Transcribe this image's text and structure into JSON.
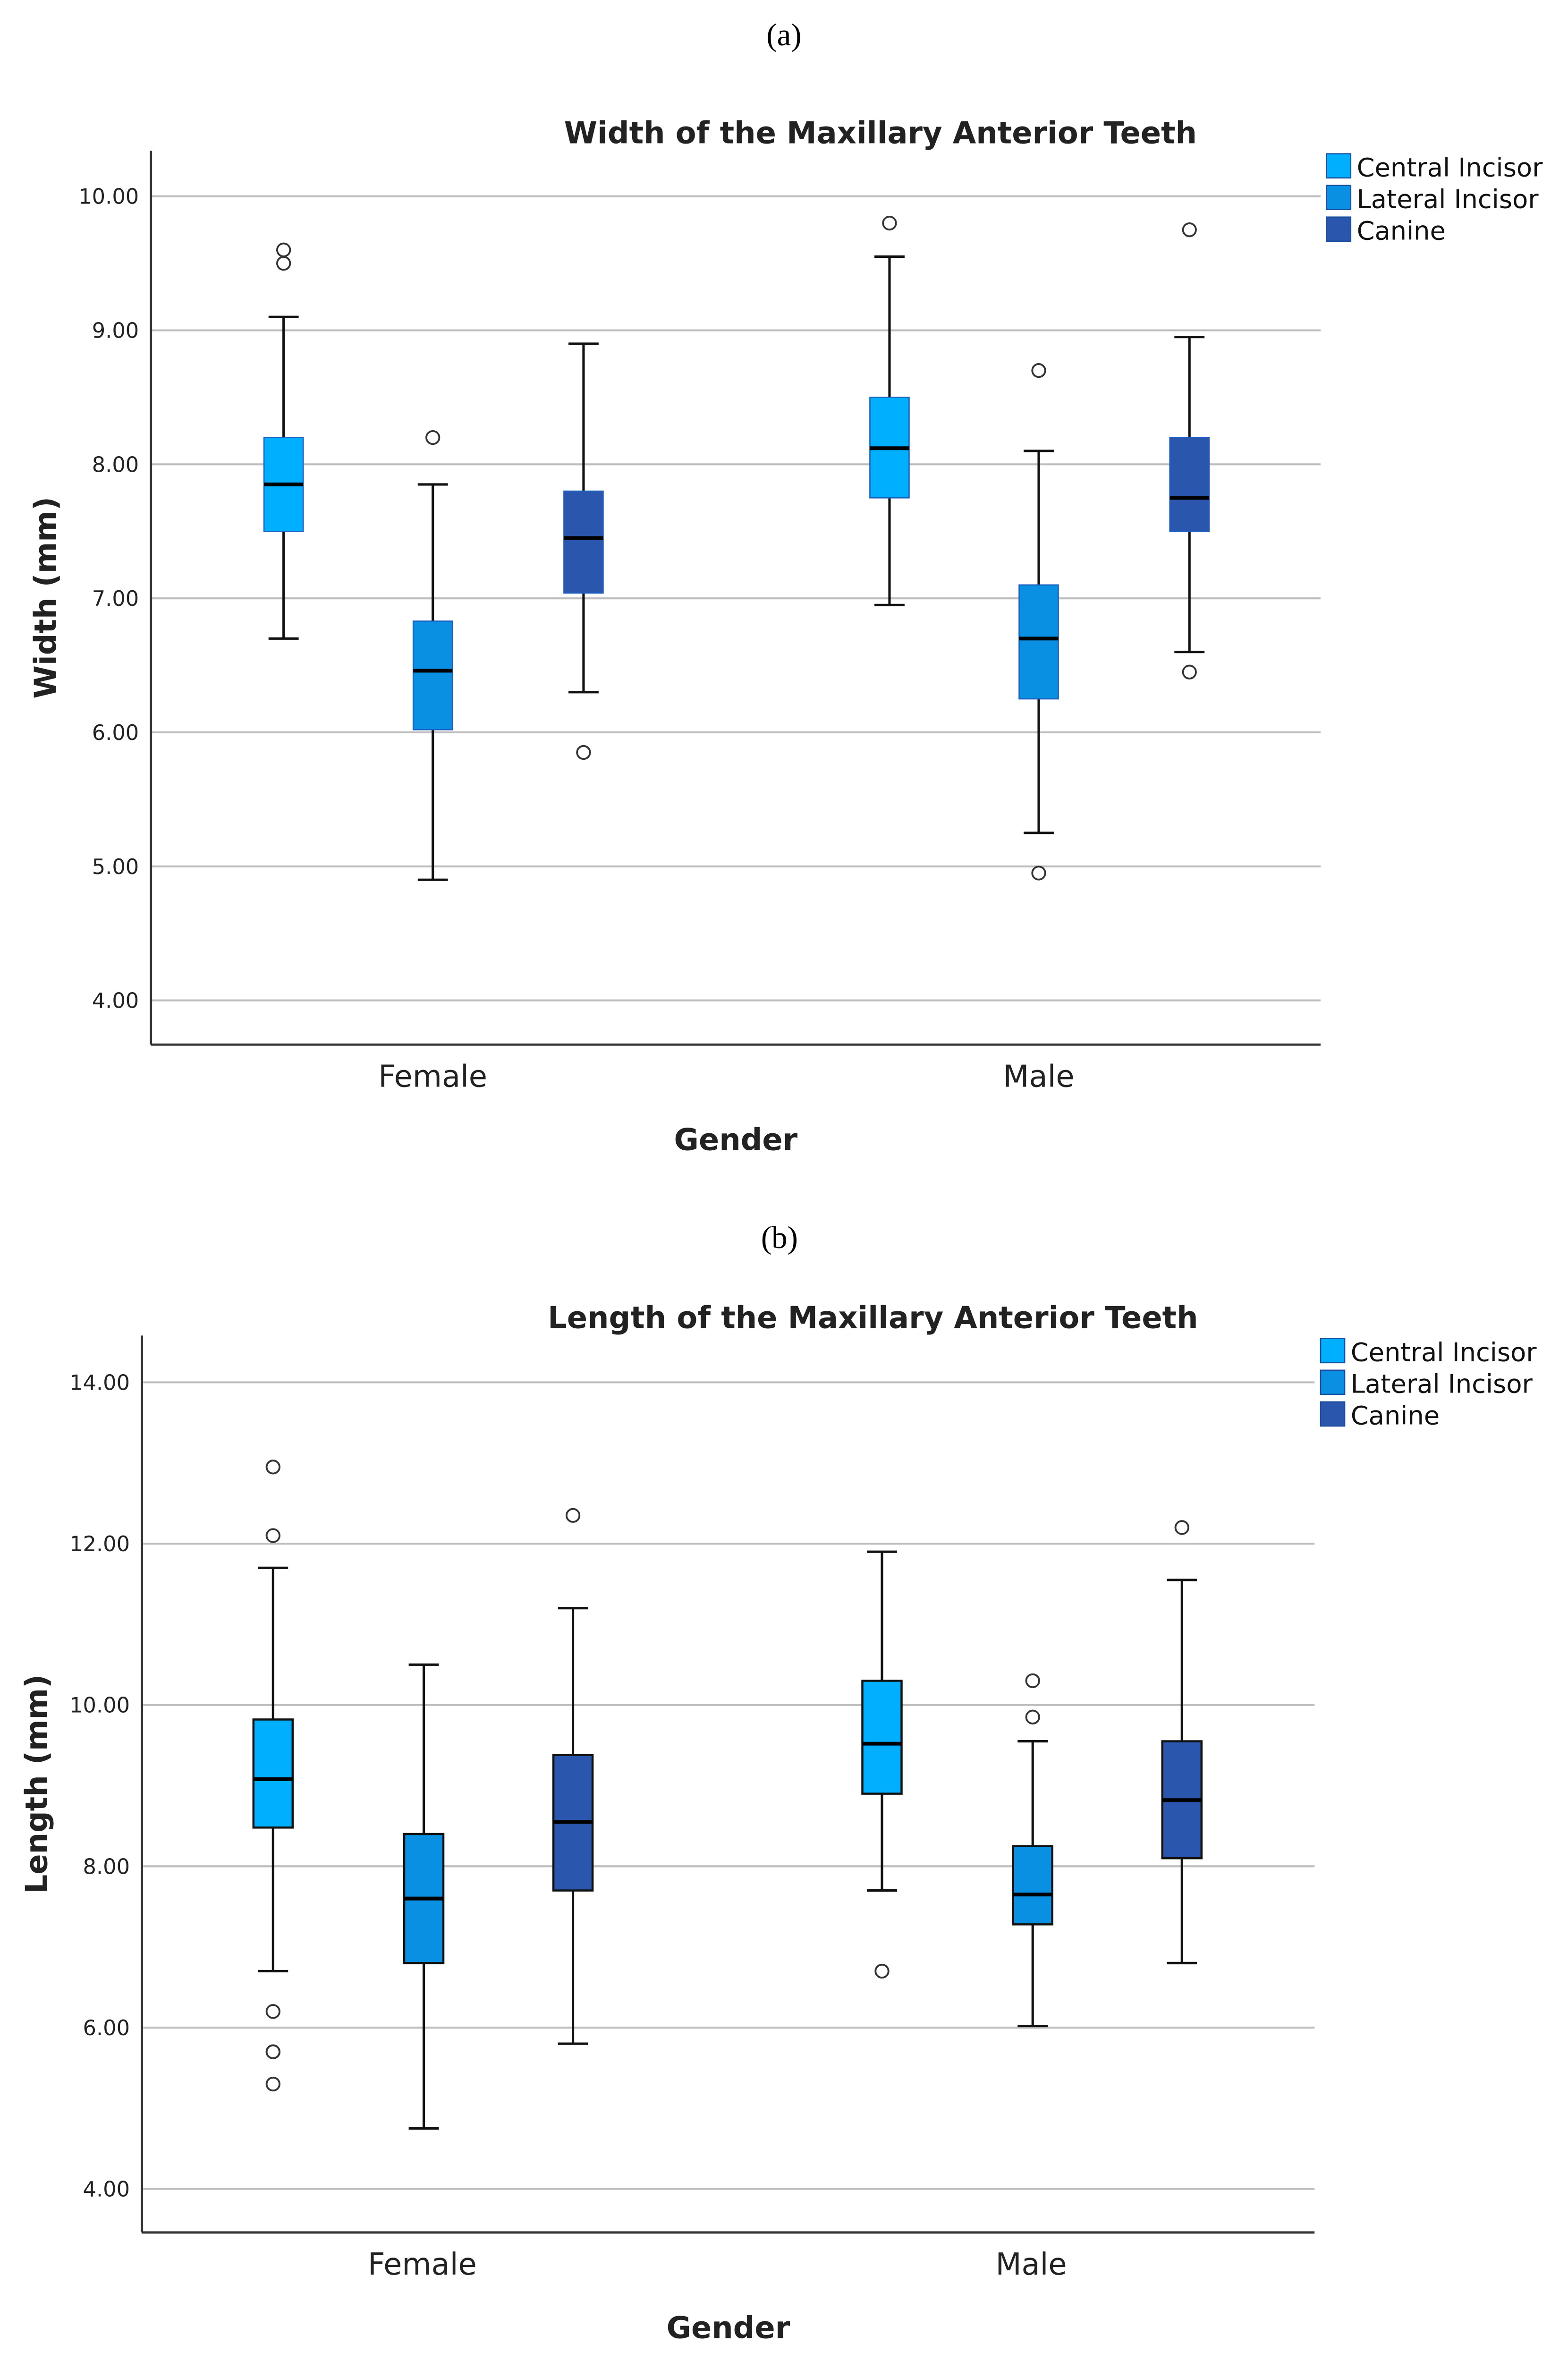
{
  "panel_labels": [
    "(a)",
    "(b)"
  ],
  "colors": {
    "Central Incisor": "#00b0ff",
    "Lateral Incisor": "#0a90e2",
    "Canine": "#2a56ad"
  },
  "chart_data": [
    {
      "type": "box",
      "title": "Width of the Maxillary Anterior Teeth",
      "xlabel": "Gender",
      "ylabel": "Width (mm)",
      "ylim": [
        3.67,
        10.34
      ],
      "yticks": [
        "4.00",
        "5.00",
        "6.00",
        "7.00",
        "8.00",
        "9.00",
        "10.00"
      ],
      "grid": true,
      "legend_position": "top-right",
      "categories": [
        "Female",
        "Male"
      ],
      "series": [
        {
          "name": "Central Incisor",
          "boxes": [
            {
              "min": 6.7,
              "q1": 7.5,
              "median": 7.85,
              "q3": 8.2,
              "max": 9.1,
              "outliers": [
                9.5,
                9.6
              ]
            },
            {
              "min": 6.95,
              "q1": 7.75,
              "median": 8.12,
              "q3": 8.5,
              "max": 9.55,
              "outliers": [
                9.8
              ]
            }
          ]
        },
        {
          "name": "Lateral Incisor",
          "boxes": [
            {
              "min": 4.9,
              "q1": 6.02,
              "median": 6.46,
              "q3": 6.83,
              "max": 7.85,
              "outliers": [
                8.2
              ]
            },
            {
              "min": 5.25,
              "q1": 6.25,
              "median": 6.7,
              "q3": 7.1,
              "max": 8.1,
              "outliers": [
                8.7,
                4.95
              ]
            }
          ]
        },
        {
          "name": "Canine",
          "boxes": [
            {
              "min": 6.3,
              "q1": 7.04,
              "median": 7.45,
              "q3": 7.8,
              "max": 8.9,
              "outliers": [
                5.85
              ]
            },
            {
              "min": 6.6,
              "q1": 7.5,
              "median": 7.75,
              "q3": 8.2,
              "max": 8.95,
              "outliers": [
                9.75,
                6.45
              ]
            }
          ]
        }
      ]
    },
    {
      "type": "box",
      "title": "Length of the Maxillary Anterior Teeth",
      "xlabel": "Gender",
      "ylabel": "Length (mm)",
      "ylim": [
        3.46,
        14.58
      ],
      "yticks": [
        "4.00",
        "6.00",
        "8.00",
        "10.00",
        "12.00",
        "14.00"
      ],
      "grid": true,
      "legend_position": "top-right",
      "categories": [
        "Female",
        "Male"
      ],
      "series": [
        {
          "name": "Central Incisor",
          "boxes": [
            {
              "min": 6.7,
              "q1": 8.48,
              "median": 9.08,
              "q3": 9.82,
              "max": 11.7,
              "outliers": [
                12.95,
                12.1,
                6.2,
                5.7,
                5.7,
                5.3
              ]
            },
            {
              "min": 7.7,
              "q1": 8.9,
              "median": 9.52,
              "q3": 10.3,
              "max": 11.9,
              "outliers": [
                6.7
              ]
            }
          ]
        },
        {
          "name": "Lateral Incisor",
          "boxes": [
            {
              "min": 4.75,
              "q1": 6.8,
              "median": 7.6,
              "q3": 8.4,
              "max": 10.5,
              "outliers": []
            },
            {
              "min": 6.02,
              "q1": 7.28,
              "median": 7.65,
              "q3": 8.25,
              "max": 9.55,
              "outliers": [
                10.3,
                9.85
              ]
            }
          ]
        },
        {
          "name": "Canine",
          "boxes": [
            {
              "min": 5.8,
              "q1": 7.7,
              "median": 8.55,
              "q3": 9.38,
              "max": 11.2,
              "outliers": [
                12.35
              ]
            },
            {
              "min": 6.8,
              "q1": 8.1,
              "median": 8.82,
              "q3": 9.55,
              "max": 11.55,
              "outliers": [
                12.2
              ]
            }
          ]
        }
      ]
    }
  ]
}
